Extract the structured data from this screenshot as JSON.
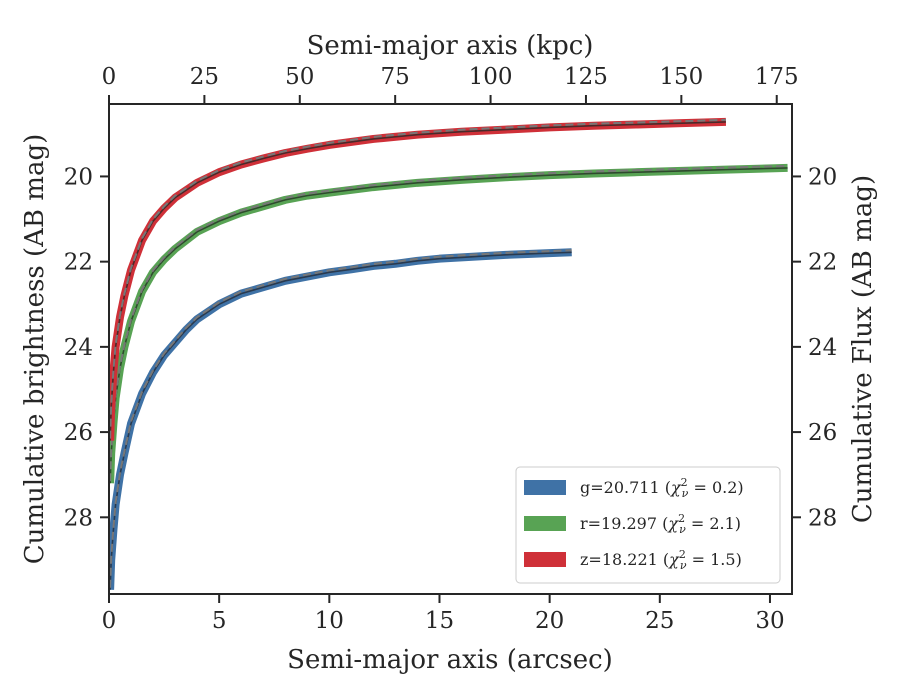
{
  "chart_data": {
    "type": "line",
    "xlabel": "Semi-major axis (arcsec)",
    "x2label": "Semi-major axis (kpc)",
    "ylabel": "Cumulative brightness (AB mag)",
    "y2label": "Cumulative Flux (AB mag)",
    "xlim": [
      0,
      31
    ],
    "x2lim": [
      0,
      179
    ],
    "ylim": [
      29.8,
      18.3
    ],
    "xticks": [
      0,
      5,
      10,
      15,
      20,
      25,
      30
    ],
    "x2ticks": [
      0,
      25,
      50,
      75,
      100,
      125,
      150,
      175
    ],
    "yticks": [
      20,
      22,
      24,
      26,
      28
    ],
    "y_inverted": true,
    "grid": false,
    "legend_position": "lower-right",
    "series": [
      {
        "name": "g",
        "legend_main": "g=20.711 (",
        "legend_chi": "χ",
        "legend_sub": "ν",
        "legend_sup": "2",
        "legend_tail": " = 0.2)",
        "color": "#3f72a6",
        "model_color": "#2a3a4e",
        "points": [
          [
            0.05,
            29.7
          ],
          [
            0.1,
            29.0
          ],
          [
            0.2,
            28.3
          ],
          [
            0.3,
            27.7
          ],
          [
            0.5,
            27.0
          ],
          [
            0.7,
            26.5
          ],
          [
            1.0,
            25.8
          ],
          [
            1.5,
            25.1
          ],
          [
            2.0,
            24.6
          ],
          [
            2.5,
            24.2
          ],
          [
            3.0,
            23.9
          ],
          [
            3.5,
            23.6
          ],
          [
            4.0,
            23.35
          ],
          [
            5.0,
            23.0
          ],
          [
            6.0,
            22.75
          ],
          [
            7.0,
            22.6
          ],
          [
            8.0,
            22.45
          ],
          [
            9.0,
            22.35
          ],
          [
            10.0,
            22.25
          ],
          [
            11.0,
            22.18
          ],
          [
            12.0,
            22.1
          ],
          [
            13.0,
            22.05
          ],
          [
            14.0,
            21.98
          ],
          [
            15.0,
            21.93
          ],
          [
            16.0,
            21.9
          ],
          [
            17.0,
            21.87
          ],
          [
            18.0,
            21.84
          ],
          [
            19.0,
            21.82
          ],
          [
            20.0,
            21.8
          ],
          [
            21.0,
            21.78
          ]
        ]
      },
      {
        "name": "r",
        "legend_main": "r=19.297 (",
        "legend_chi": "χ",
        "legend_sub": "ν",
        "legend_sup": "2",
        "legend_tail": " = 2.1)",
        "color": "#58a354",
        "model_color": "#2f4a2e",
        "points": [
          [
            0.05,
            27.2
          ],
          [
            0.1,
            26.5
          ],
          [
            0.2,
            25.8
          ],
          [
            0.3,
            25.2
          ],
          [
            0.5,
            24.5
          ],
          [
            0.7,
            24.0
          ],
          [
            1.0,
            23.4
          ],
          [
            1.5,
            22.7
          ],
          [
            2.0,
            22.25
          ],
          [
            2.5,
            21.95
          ],
          [
            3.0,
            21.7
          ],
          [
            4.0,
            21.3
          ],
          [
            5.0,
            21.05
          ],
          [
            6.0,
            20.85
          ],
          [
            7.0,
            20.7
          ],
          [
            8.0,
            20.55
          ],
          [
            9.0,
            20.45
          ],
          [
            10.0,
            20.38
          ],
          [
            12.0,
            20.25
          ],
          [
            14.0,
            20.15
          ],
          [
            16.0,
            20.08
          ],
          [
            18.0,
            20.02
          ],
          [
            20.0,
            19.97
          ],
          [
            22.0,
            19.93
          ],
          [
            24.0,
            19.9
          ],
          [
            26.0,
            19.87
          ],
          [
            28.0,
            19.84
          ],
          [
            30.8,
            19.8
          ]
        ]
      },
      {
        "name": "z",
        "legend_main": "z=18.221 (",
        "legend_chi": "χ",
        "legend_sub": "ν",
        "legend_sup": "2",
        "legend_tail": " = 1.5)",
        "color": "#cf3038",
        "model_color": "#4a2a2a",
        "points": [
          [
            0.05,
            26.2
          ],
          [
            0.1,
            25.4
          ],
          [
            0.2,
            24.6
          ],
          [
            0.3,
            24.0
          ],
          [
            0.5,
            23.3
          ],
          [
            0.7,
            22.8
          ],
          [
            1.0,
            22.2
          ],
          [
            1.5,
            21.5
          ],
          [
            2.0,
            21.05
          ],
          [
            2.5,
            20.75
          ],
          [
            3.0,
            20.5
          ],
          [
            4.0,
            20.15
          ],
          [
            5.0,
            19.9
          ],
          [
            6.0,
            19.72
          ],
          [
            7.0,
            19.58
          ],
          [
            8.0,
            19.45
          ],
          [
            9.0,
            19.35
          ],
          [
            10.0,
            19.26
          ],
          [
            12.0,
            19.12
          ],
          [
            14.0,
            19.02
          ],
          [
            16.0,
            18.95
          ],
          [
            18.0,
            18.9
          ],
          [
            20.0,
            18.85
          ],
          [
            22.0,
            18.81
          ],
          [
            24.0,
            18.78
          ],
          [
            26.0,
            18.75
          ],
          [
            28.0,
            18.72
          ]
        ]
      }
    ]
  }
}
